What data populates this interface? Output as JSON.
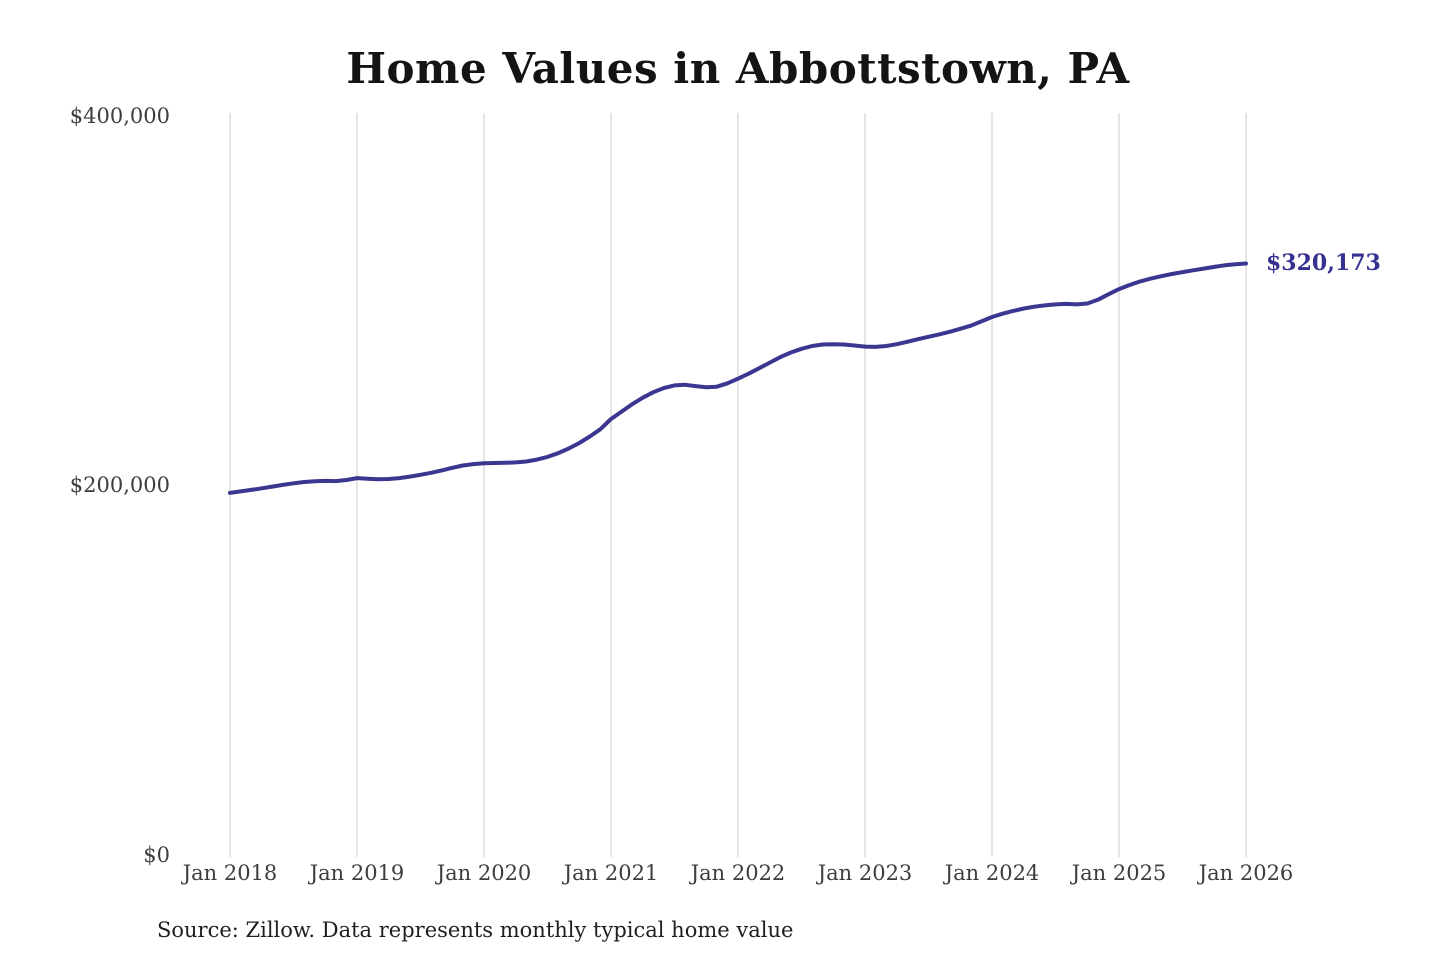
{
  "title": "Home Values in Abbottstown, PA",
  "end_label": "$320,173",
  "source_note": "Source: Zillow. Data represents monthly typical home value",
  "colors": {
    "line": "#3b3791",
    "end_label": "#343190",
    "grid": "#cbcbcb",
    "title": "#141414",
    "axis_text": "#3d3d3d"
  },
  "chart_data": {
    "type": "line",
    "title": "Home Values in Abbottstown, PA",
    "xlabel": "",
    "ylabel": "",
    "ylim": [
      0,
      400000
    ],
    "grid": "vertical-only",
    "legend": "none",
    "x_ticks": [
      "Jan 2018",
      "Jan 2019",
      "Jan 2020",
      "Jan 2021",
      "Jan 2022",
      "Jan 2023",
      "Jan 2024",
      "Jan 2025",
      "Jan 2026"
    ],
    "y_ticks": [
      {
        "label": "$0",
        "value": 0
      },
      {
        "label": "$200,000",
        "value": 200000
      },
      {
        "label": "$400,000",
        "value": 400000
      }
    ],
    "final_value": 320173,
    "final_value_label": "$320,173",
    "series": [
      {
        "name": "Monthly typical home value",
        "unit": "USD",
        "x_start": "2018-01",
        "x_step": "1 month",
        "values": [
          196000,
          196800,
          197600,
          198500,
          199400,
          200300,
          201200,
          201900,
          202300,
          202500,
          202400,
          203000,
          204000,
          203700,
          203400,
          203500,
          204000,
          204800,
          205800,
          206900,
          208200,
          209600,
          210800,
          211600,
          212000,
          212200,
          212300,
          212500,
          213000,
          214000,
          215500,
          217500,
          220000,
          223000,
          226500,
          230500,
          236000,
          240000,
          244000,
          247500,
          250500,
          252800,
          254200,
          254500,
          253800,
          253200,
          253500,
          255300,
          257800,
          260500,
          263500,
          266500,
          269500,
          272000,
          274000,
          275500,
          276300,
          276500,
          276300,
          275800,
          275200,
          275000,
          275500,
          276500,
          277800,
          279200,
          280500,
          281800,
          283200,
          284800,
          286500,
          288800,
          291200,
          293000,
          294500,
          295800,
          296800,
          297500,
          298000,
          298300,
          298000,
          298500,
          300500,
          303500,
          306300,
          308500,
          310500,
          312000,
          313300,
          314500,
          315500,
          316500,
          317400,
          318300,
          319200,
          319800,
          320173
        ]
      }
    ]
  }
}
